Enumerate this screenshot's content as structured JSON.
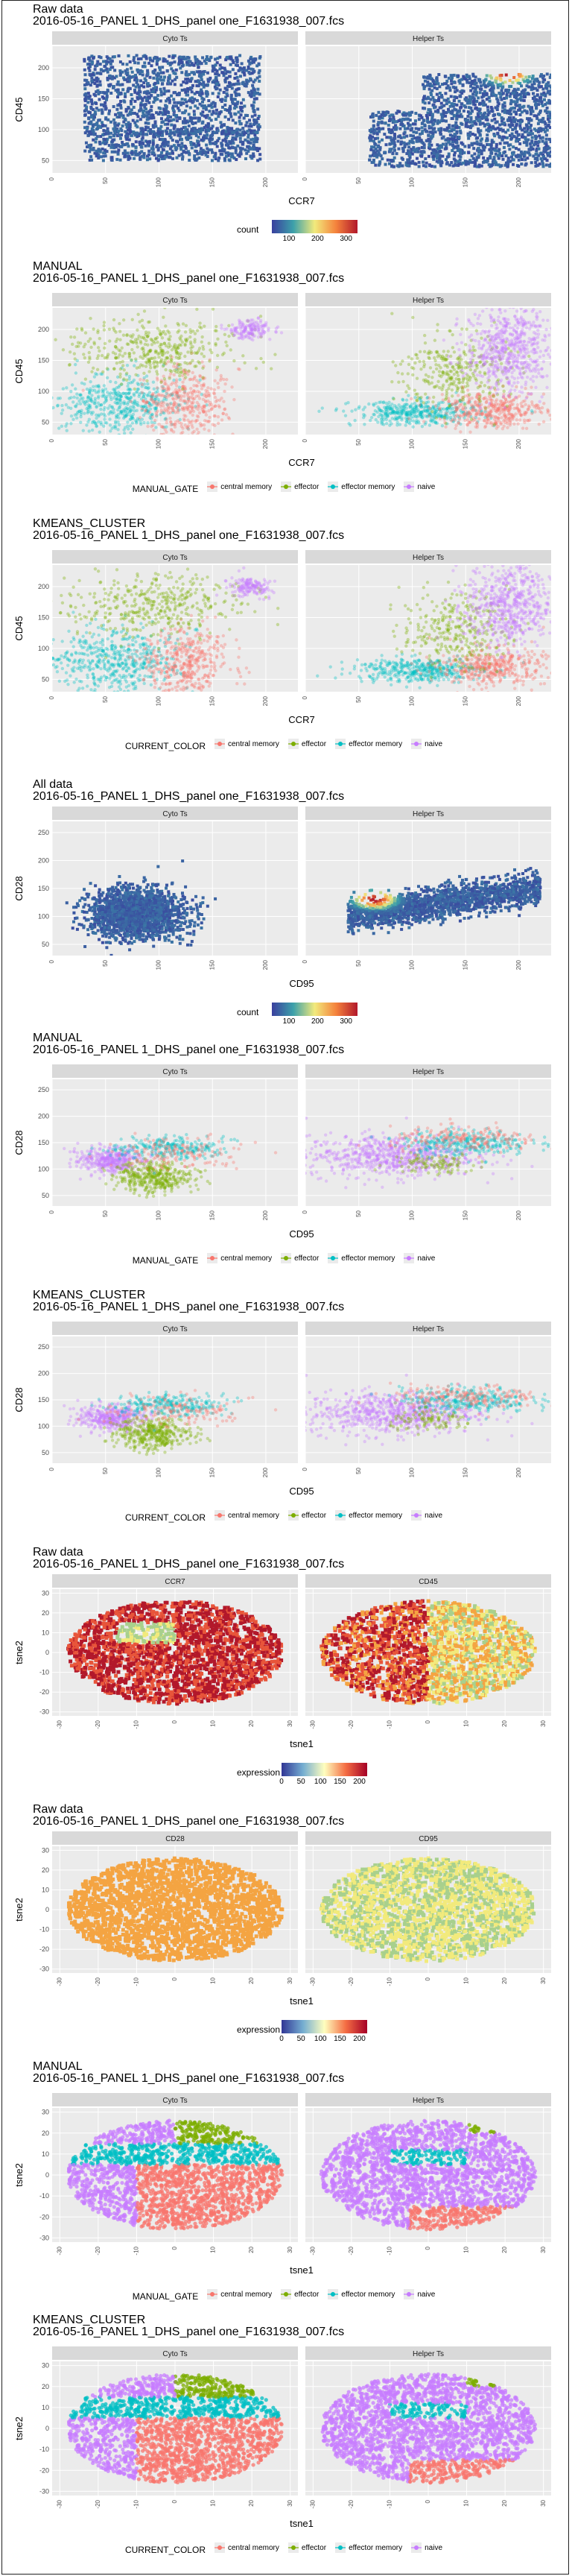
{
  "colors": {
    "central_memory": "#f8766d",
    "effector": "#7cae00",
    "effector_memory": "#00bfc4",
    "naive": "#c77cff",
    "panel_bg": "#ebebeb",
    "strip_bg": "#d9d9d9",
    "grid": "#ffffff",
    "count_low": "#3a3f9e",
    "count_mid": "#f2ea7c",
    "count_high": "#b2182b"
  },
  "legend_labels": {
    "central_memory": "central memory",
    "effector": "effector",
    "effector_memory": "effector memory",
    "naive": "naive"
  },
  "sections": [
    {
      "id": "raw-ccr7-cd45",
      "title": "Raw data",
      "subtitle": "2016-05-16_PANEL 1_DHS_panel one_F1631938_007.fcs",
      "ylabel": "CD45",
      "xlabel": "CCR7",
      "legend_title": "count",
      "legend_ticks": [
        "100",
        "200",
        "300"
      ]
    },
    {
      "id": "manual-ccr7-cd45",
      "title": "MANUAL",
      "subtitle": "2016-05-16_PANEL 1_DHS_panel one_F1631938_007.fcs",
      "ylabel": "CD45",
      "xlabel": "CCR7",
      "legend_title": "MANUAL_GATE"
    },
    {
      "id": "kmeans-ccr7-cd45",
      "title": "KMEANS_CLUSTER",
      "subtitle": "2016-05-16_PANEL 1_DHS_panel one_F1631938_007.fcs",
      "ylabel": "CD45",
      "xlabel": "CCR7",
      "legend_title": "CURRENT_COLOR"
    },
    {
      "id": "all-cd95-cd28",
      "title": "All data",
      "subtitle": "2016-05-16_PANEL 1_DHS_panel one_F1631938_007.fcs",
      "ylabel": "CD28",
      "xlabel": "CD95",
      "legend_title": "count",
      "legend_ticks": [
        "100",
        "200",
        "300"
      ]
    },
    {
      "id": "manual-cd95-cd28",
      "title": "MANUAL",
      "subtitle": "2016-05-16_PANEL 1_DHS_panel one_F1631938_007.fcs",
      "ylabel": "CD28",
      "xlabel": "CD95",
      "legend_title": "MANUAL_GATE"
    },
    {
      "id": "kmeans-cd95-cd28",
      "title": "KMEANS_CLUSTER",
      "subtitle": "2016-05-16_PANEL 1_DHS_panel one_F1631938_007.fcs",
      "ylabel": "CD28",
      "xlabel": "CD95",
      "legend_title": "CURRENT_COLOR"
    },
    {
      "id": "raw-tsne-ccr7-cd45",
      "title": "Raw data",
      "subtitle": "2016-05-16_PANEL 1_DHS_panel one_F1631938_007.fcs",
      "ylabel": "tsne2",
      "xlabel": "tsne1",
      "legend_title": "expression",
      "legend_ticks": [
        "0",
        "50",
        "100",
        "150",
        "200"
      ]
    },
    {
      "id": "raw-tsne-cd28-cd95",
      "title": "Raw data",
      "subtitle": "2016-05-16_PANEL 1_DHS_panel one_F1631938_007.fcs",
      "ylabel": "tsne2",
      "xlabel": "tsne1",
      "legend_title": "expression",
      "legend_ticks": [
        "0",
        "50",
        "100",
        "150",
        "200"
      ]
    },
    {
      "id": "manual-tsne",
      "title": "MANUAL",
      "subtitle": "2016-05-16_PANEL 1_DHS_panel one_F1631938_007.fcs",
      "ylabel": "tsne2",
      "xlabel": "tsne1",
      "legend_title": "MANUAL_GATE"
    },
    {
      "id": "kmeans-tsne",
      "title": "KMEANS_CLUSTER",
      "subtitle": "2016-05-16_PANEL 1_DHS_panel one_F1631938_007.fcs",
      "ylabel": "tsne2",
      "xlabel": "tsne1",
      "legend_title": "CURRENT_COLOR"
    }
  ],
  "chart_data": [
    {
      "type": "heatmap",
      "title": "Raw data",
      "facets": [
        "Cyto Ts",
        "Helper Ts"
      ],
      "xlabel": "CCR7",
      "ylabel": "CD45",
      "x_ticks": [
        0,
        50,
        100,
        150,
        200
      ],
      "y_ticks": [
        50,
        100,
        150,
        200
      ],
      "xlim": [
        0,
        230
      ],
      "ylim": [
        30,
        235
      ],
      "fill": "count",
      "fill_ticks": [
        100,
        200,
        300
      ],
      "hotspots": [
        {
          "facet": "Helper Ts",
          "x": 190,
          "y": 190,
          "count": 350
        }
      ]
    },
    {
      "type": "scatter",
      "title": "MANUAL",
      "facets": [
        "Cyto Ts",
        "Helper Ts"
      ],
      "xlabel": "CCR7",
      "ylabel": "CD45",
      "x_ticks": [
        0,
        50,
        100,
        150,
        200
      ],
      "y_ticks": [
        50,
        100,
        150,
        200
      ],
      "xlim": [
        0,
        230
      ],
      "ylim": [
        30,
        235
      ],
      "legend": "MANUAL_GATE",
      "groups": [
        "central memory",
        "effector",
        "effector memory",
        "naive"
      ]
    },
    {
      "type": "scatter",
      "title": "KMEANS_CLUSTER",
      "facets": [
        "Cyto Ts",
        "Helper Ts"
      ],
      "xlabel": "CCR7",
      "ylabel": "CD45",
      "x_ticks": [
        0,
        50,
        100,
        150,
        200
      ],
      "y_ticks": [
        50,
        100,
        150,
        200
      ],
      "xlim": [
        0,
        230
      ],
      "ylim": [
        30,
        235
      ],
      "legend": "CURRENT_COLOR",
      "groups": [
        "central memory",
        "effector",
        "effector memory",
        "naive"
      ]
    },
    {
      "type": "heatmap",
      "title": "All data",
      "facets": [
        "Cyto Ts",
        "Helper Ts"
      ],
      "xlabel": "CD95",
      "ylabel": "CD28",
      "x_ticks": [
        0,
        50,
        100,
        150,
        200
      ],
      "y_ticks": [
        50,
        100,
        150,
        200,
        250
      ],
      "xlim": [
        0,
        230
      ],
      "ylim": [
        30,
        270
      ],
      "fill": "count",
      "fill_ticks": [
        100,
        200,
        300
      ],
      "hotspots": [
        {
          "facet": "Helper Ts",
          "x": 65,
          "y": 130,
          "count": 350
        }
      ]
    },
    {
      "type": "scatter",
      "title": "MANUAL",
      "facets": [
        "Cyto Ts",
        "Helper Ts"
      ],
      "xlabel": "CD95",
      "ylabel": "CD28",
      "x_ticks": [
        0,
        50,
        100,
        150,
        200
      ],
      "y_ticks": [
        50,
        100,
        150,
        200,
        250
      ],
      "xlim": [
        0,
        230
      ],
      "ylim": [
        30,
        270
      ],
      "legend": "MANUAL_GATE",
      "groups": [
        "central memory",
        "effector",
        "effector memory",
        "naive"
      ]
    },
    {
      "type": "scatter",
      "title": "KMEANS_CLUSTER",
      "facets": [
        "Cyto Ts",
        "Helper Ts"
      ],
      "xlabel": "CD95",
      "ylabel": "CD28",
      "x_ticks": [
        0,
        50,
        100,
        150,
        200
      ],
      "y_ticks": [
        50,
        100,
        150,
        200,
        250
      ],
      "xlim": [
        0,
        230
      ],
      "ylim": [
        30,
        270
      ],
      "legend": "CURRENT_COLOR",
      "groups": [
        "central memory",
        "effector",
        "effector memory",
        "naive"
      ]
    },
    {
      "type": "heatmap",
      "title": "Raw data",
      "facets": [
        "CCR7",
        "CD45"
      ],
      "xlabel": "tsne1",
      "ylabel": "tsne2",
      "x_ticks": [
        -30,
        -20,
        -10,
        0,
        10,
        20,
        30
      ],
      "y_ticks": [
        -30,
        -20,
        -10,
        0,
        10,
        20,
        30
      ],
      "xlim": [
        -32,
        32
      ],
      "ylim": [
        -32,
        32
      ],
      "fill": "expression",
      "fill_ticks": [
        0,
        50,
        100,
        150,
        200
      ]
    },
    {
      "type": "heatmap",
      "title": "Raw data",
      "facets": [
        "CD28",
        "CD95"
      ],
      "xlabel": "tsne1",
      "ylabel": "tsne2",
      "x_ticks": [
        -30,
        -20,
        -10,
        0,
        10,
        20,
        30
      ],
      "y_ticks": [
        -30,
        -20,
        -10,
        0,
        10,
        20,
        30
      ],
      "xlim": [
        -32,
        32
      ],
      "ylim": [
        -32,
        32
      ],
      "fill": "expression",
      "fill_ticks": [
        0,
        50,
        100,
        150,
        200
      ]
    },
    {
      "type": "scatter",
      "title": "MANUAL",
      "facets": [
        "Cyto Ts",
        "Helper Ts"
      ],
      "xlabel": "tsne1",
      "ylabel": "tsne2",
      "x_ticks": [
        -30,
        -20,
        -10,
        0,
        10,
        20,
        30
      ],
      "y_ticks": [
        -30,
        -20,
        -10,
        0,
        10,
        20,
        30
      ],
      "xlim": [
        -32,
        32
      ],
      "ylim": [
        -32,
        32
      ],
      "legend": "MANUAL_GATE",
      "groups": [
        "central memory",
        "effector",
        "effector memory",
        "naive"
      ]
    },
    {
      "type": "scatter",
      "title": "KMEANS_CLUSTER",
      "facets": [
        "Cyto Ts",
        "Helper Ts"
      ],
      "xlabel": "tsne1",
      "ylabel": "tsne2",
      "x_ticks": [
        -30,
        -20,
        -10,
        0,
        10,
        20,
        30
      ],
      "y_ticks": [
        -30,
        -20,
        -10,
        0,
        10,
        20,
        30
      ],
      "xlim": [
        -32,
        32
      ],
      "ylim": [
        -32,
        32
      ],
      "legend": "CURRENT_COLOR",
      "groups": [
        "central memory",
        "effector",
        "effector memory",
        "naive"
      ]
    }
  ]
}
